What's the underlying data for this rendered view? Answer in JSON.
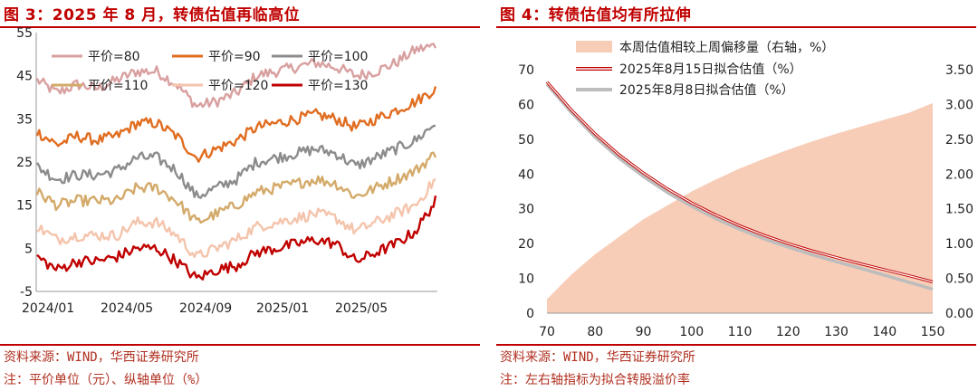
{
  "left": {
    "title": "图 3：2025 年 8 月，转债估值再临高位",
    "source": "资料来源：WIND，华西证券研究所",
    "note": "注：平价单位（元）、纵轴单位（%）",
    "chart_data": {
      "type": "line",
      "title": "图 3：2025 年 8 月，转债估值再临高位",
      "xlabel": "",
      "ylabel": "",
      "x_ticks": [
        "2024/01",
        "2024/05",
        "2024/09",
        "2025/01",
        "2025/05"
      ],
      "x_range": [
        "2024/01",
        "2025/08"
      ],
      "y_ticks": [
        -5,
        5,
        15,
        25,
        35,
        45,
        55
      ],
      "ylim": [
        -5,
        55
      ],
      "legend_position": "top",
      "series": [
        {
          "name": "平价=80",
          "color": "#d9a0a0",
          "values": [
            44,
            41,
            43,
            42,
            44,
            46,
            46,
            43,
            38,
            39,
            41,
            45,
            46,
            47,
            48,
            47,
            45,
            46,
            48,
            51,
            52
          ]
        },
        {
          "name": "平价=90",
          "color": "#e06d20",
          "values": [
            32,
            29,
            31,
            30,
            31,
            34,
            34,
            31,
            26,
            28,
            30,
            33,
            34,
            35,
            36,
            35,
            33,
            35,
            37,
            39,
            42
          ]
        },
        {
          "name": "平价=100",
          "color": "#8c8c8c",
          "values": [
            24,
            21,
            22,
            22,
            23,
            26,
            26,
            23,
            17,
            19,
            21,
            25,
            26,
            27,
            28,
            27,
            24,
            26,
            28,
            30,
            34
          ]
        },
        {
          "name": "平价=110",
          "color": "#d4aa6a",
          "values": [
            18,
            15,
            16,
            16,
            16,
            19,
            19,
            16,
            11,
            13,
            15,
            18,
            19,
            20,
            21,
            20,
            17,
            19,
            21,
            23,
            27
          ]
        },
        {
          "name": "平价=120",
          "color": "#f4c4ac",
          "values": [
            10,
            7,
            8,
            8,
            8,
            11,
            11,
            8,
            3,
            5,
            7,
            10,
            11,
            12,
            13,
            12,
            9,
            11,
            13,
            15,
            21
          ]
        },
        {
          "name": "平价=130",
          "color": "#c00000",
          "values": [
            3,
            0,
            2,
            2,
            3,
            5,
            5,
            2,
            -2,
            0,
            1,
            4,
            5,
            6,
            7,
            6,
            2,
            4,
            6,
            9,
            16
          ]
        }
      ]
    }
  },
  "right": {
    "title": "图 4：转债估值均有所拉伸",
    "source": "资料来源：WIND，华西证券研究所",
    "note": "注：左右轴指标为拟合转股溢价率",
    "chart_data": {
      "type": "line",
      "title": "图 4：转债估值均有所拉伸",
      "xlabel": "",
      "ylabel": "",
      "x": [
        70,
        75,
        80,
        85,
        90,
        95,
        100,
        105,
        110,
        115,
        120,
        125,
        130,
        135,
        140,
        145,
        150
      ],
      "xlim": [
        70,
        150
      ],
      "x_ticks": [
        70,
        80,
        90,
        100,
        110,
        120,
        130,
        140,
        150
      ],
      "ylim": [
        0,
        70
      ],
      "y_ticks": [
        0,
        10,
        20,
        30,
        40,
        50,
        60,
        70
      ],
      "y2lim": [
        0,
        3.5
      ],
      "y2_ticks": [
        "0.00",
        "0.50",
        "1.00",
        "1.50",
        "2.00",
        "2.50",
        "3.00",
        "3.50"
      ],
      "legend_position": "top",
      "series": [
        {
          "name": "本周估值相较上周偏移量（右轴，%）",
          "type": "area",
          "axis": "right",
          "color": "#f7cdb8",
          "values": [
            0.2,
            0.55,
            0.85,
            1.1,
            1.35,
            1.55,
            1.75,
            1.92,
            2.08,
            2.22,
            2.35,
            2.47,
            2.58,
            2.68,
            2.78,
            2.88,
            3.02
          ]
        },
        {
          "name": "2025年8月15日拟合估值（%）",
          "type": "line",
          "axis": "left",
          "color": "#c00000",
          "values": [
            66.5,
            58.5,
            51.5,
            45.5,
            40.3,
            35.7,
            31.7,
            28.2,
            25.1,
            22.4,
            20.0,
            17.9,
            16.0,
            14.2,
            12.5,
            10.8,
            9.0
          ]
        },
        {
          "name": "2025年8月8日拟合估值（%）",
          "type": "line",
          "axis": "left",
          "color": "#bdbdbd",
          "values": [
            65.8,
            57.8,
            50.6,
            44.5,
            39.3,
            34.7,
            30.7,
            27.2,
            24.1,
            21.4,
            19.0,
            16.8,
            14.8,
            12.9,
            10.9,
            8.9,
            6.9
          ]
        }
      ]
    }
  }
}
